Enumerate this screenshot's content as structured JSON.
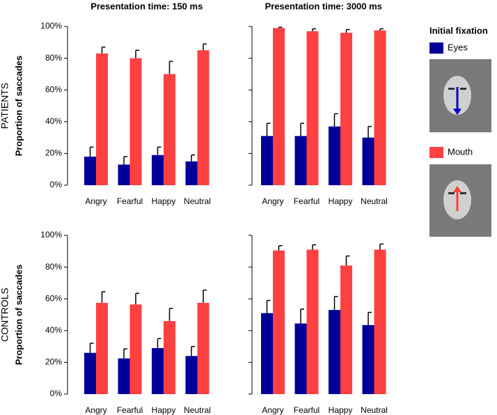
{
  "chart_data": [
    {
      "type": "bar",
      "title": "Presentation time: 150 ms",
      "row_label": "PATIENTS",
      "ylabel": "Proportion of saccades",
      "legend_title": "Initial fixation",
      "categories": [
        "Angry",
        "Fearful",
        "Happy",
        "Neutral"
      ],
      "series": [
        {
          "name": "Eyes",
          "color": "#000099",
          "values": [
            18,
            13,
            19,
            15
          ],
          "errors": [
            6,
            5,
            5,
            4
          ]
        },
        {
          "name": "Mouth",
          "color": "#ff4040",
          "values": [
            83,
            80,
            70,
            85
          ],
          "errors": [
            4,
            5,
            8,
            4
          ]
        }
      ],
      "ylim": [
        0,
        100
      ],
      "tick_labels": true,
      "yticks": [
        {
          "value": 0,
          "label": "0%"
        },
        {
          "value": 20,
          "label": "20%"
        },
        {
          "value": 40,
          "label": "40%"
        },
        {
          "value": 60,
          "label": "60%"
        },
        {
          "value": 80,
          "label": "80%"
        },
        {
          "value": 100,
          "label": "100%"
        }
      ]
    },
    {
      "type": "bar",
      "title": "Presentation time: 3000 ms",
      "categories": [
        "Angry",
        "Fearful",
        "Happy",
        "Neutral"
      ],
      "series": [
        {
          "color": "#000099",
          "values": [
            31,
            31,
            37,
            30
          ],
          "errors": [
            8,
            8,
            8,
            7
          ]
        },
        {
          "color": "#ff4040",
          "values": [
            99,
            97,
            96,
            97.5
          ],
          "errors": [
            0.5,
            1.5,
            2,
            1
          ]
        }
      ],
      "ylim": [
        0,
        100
      ],
      "tick_labels": false,
      "yticks": [
        0,
        20,
        40,
        60,
        80,
        100
      ]
    },
    {
      "type": "bar",
      "row_label": "CONTROLS",
      "ylabel": "Proportion of saccades",
      "categories": [
        "Angry",
        "Fearful",
        "Happy",
        "Neutral"
      ],
      "series": [
        {
          "color": "#000099",
          "values": [
            26,
            22.5,
            29,
            24
          ],
          "errors": [
            6,
            6,
            6,
            6
          ]
        },
        {
          "color": "#ff4040",
          "values": [
            57.5,
            56.5,
            46,
            57.5
          ],
          "errors": [
            7,
            7,
            8,
            8
          ]
        }
      ],
      "ylim": [
        0,
        100
      ],
      "tick_labels": true,
      "yticks": [
        {
          "value": 0,
          "label": "0%"
        },
        {
          "value": 20,
          "label": "20%"
        },
        {
          "value": 40,
          "label": "40%"
        },
        {
          "value": 60,
          "label": "60%"
        },
        {
          "value": 80,
          "label": "80%"
        },
        {
          "value": 100,
          "label": "100%"
        }
      ]
    },
    {
      "type": "bar",
      "categories": [
        "Angry",
        "Fearful",
        "Happy",
        "Neutral"
      ],
      "series": [
        {
          "color": "#000099",
          "values": [
            51,
            44.5,
            53,
            43.5
          ],
          "errors": [
            8,
            9,
            8.5,
            8
          ]
        },
        {
          "color": "#ff4040",
          "values": [
            90.5,
            91,
            81,
            91
          ],
          "errors": [
            3,
            3,
            6,
            3.5
          ]
        }
      ],
      "ylim": [
        0,
        100
      ],
      "tick_labels": false,
      "yticks": [
        0,
        20,
        40,
        60,
        80,
        100
      ]
    }
  ]
}
